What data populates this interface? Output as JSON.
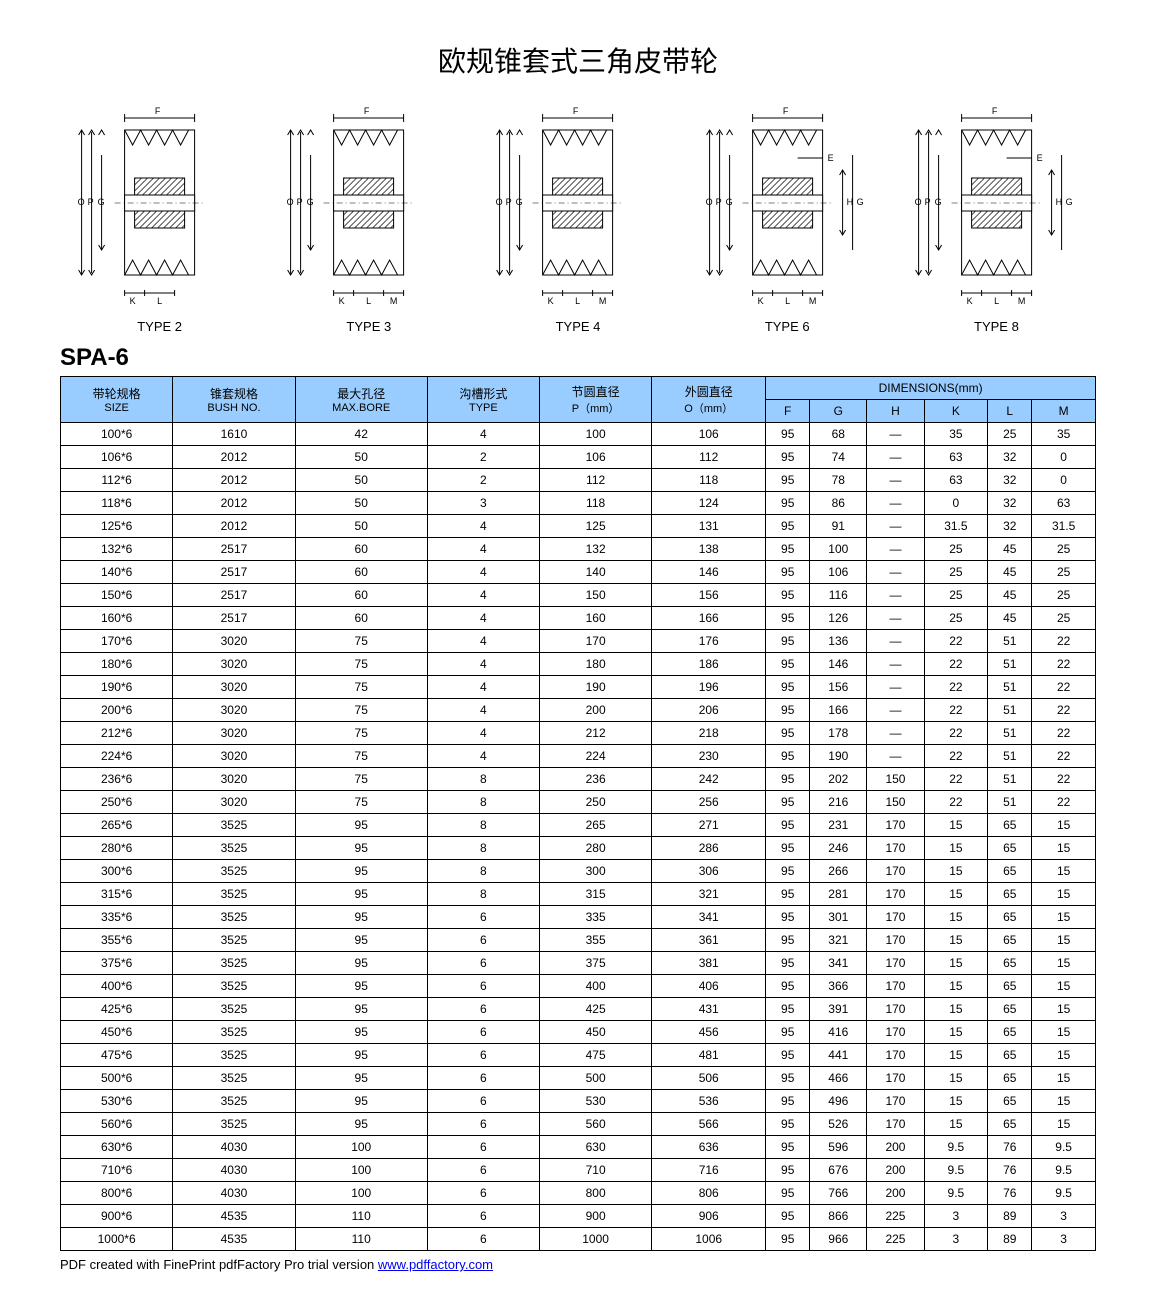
{
  "title": "欧规锥套式三角皮带轮",
  "model": "SPA-6",
  "diagrams": [
    {
      "label": "TYPE 2",
      "dims": [
        "F",
        "O",
        "P",
        "G",
        "K",
        "L"
      ]
    },
    {
      "label": "TYPE 3",
      "dims": [
        "F",
        "O",
        "P",
        "G",
        "K",
        "L",
        "M"
      ]
    },
    {
      "label": "TYPE 4",
      "dims": [
        "F",
        "O",
        "P",
        "G",
        "K",
        "L",
        "M"
      ]
    },
    {
      "label": "TYPE 6",
      "dims": [
        "F",
        "E",
        "O",
        "P",
        "H",
        "G",
        "K",
        "L",
        "M"
      ]
    },
    {
      "label": "TYPE 8",
      "dims": [
        "F",
        "E",
        "O",
        "P",
        "H",
        "G",
        "K",
        "L",
        "M"
      ]
    }
  ],
  "headers": {
    "row1": [
      {
        "cn": "带轮规格",
        "en": "SIZE"
      },
      {
        "cn": "锥套规格",
        "en": "BUSH NO."
      },
      {
        "cn": "最大孔径",
        "en": "MAX.BORE"
      },
      {
        "cn": "沟槽形式",
        "en": "TYPE"
      },
      {
        "cn": "节圆直径",
        "en": "P（mm）"
      },
      {
        "cn": "外圆直径",
        "en": "O（mm）"
      }
    ],
    "dims_title": "DIMENSIONS(mm)",
    "dims_cols": [
      "F",
      "G",
      "H",
      "K",
      "L",
      "M"
    ]
  },
  "colors": {
    "header_bg": "#99ccff",
    "border": "#000000",
    "link": "#0000ee"
  },
  "rows": [
    [
      "100*6",
      "1610",
      "42",
      "4",
      "100",
      "106",
      "95",
      "68",
      "—",
      "35",
      "25",
      "35"
    ],
    [
      "106*6",
      "2012",
      "50",
      "2",
      "106",
      "112",
      "95",
      "74",
      "—",
      "63",
      "32",
      "0"
    ],
    [
      "112*6",
      "2012",
      "50",
      "2",
      "112",
      "118",
      "95",
      "78",
      "—",
      "63",
      "32",
      "0"
    ],
    [
      "118*6",
      "2012",
      "50",
      "3",
      "118",
      "124",
      "95",
      "86",
      "—",
      "0",
      "32",
      "63"
    ],
    [
      "125*6",
      "2012",
      "50",
      "4",
      "125",
      "131",
      "95",
      "91",
      "—",
      "31.5",
      "32",
      "31.5"
    ],
    [
      "132*6",
      "2517",
      "60",
      "4",
      "132",
      "138",
      "95",
      "100",
      "—",
      "25",
      "45",
      "25"
    ],
    [
      "140*6",
      "2517",
      "60",
      "4",
      "140",
      "146",
      "95",
      "106",
      "—",
      "25",
      "45",
      "25"
    ],
    [
      "150*6",
      "2517",
      "60",
      "4",
      "150",
      "156",
      "95",
      "116",
      "—",
      "25",
      "45",
      "25"
    ],
    [
      "160*6",
      "2517",
      "60",
      "4",
      "160",
      "166",
      "95",
      "126",
      "—",
      "25",
      "45",
      "25"
    ],
    [
      "170*6",
      "3020",
      "75",
      "4",
      "170",
      "176",
      "95",
      "136",
      "—",
      "22",
      "51",
      "22"
    ],
    [
      "180*6",
      "3020",
      "75",
      "4",
      "180",
      "186",
      "95",
      "146",
      "—",
      "22",
      "51",
      "22"
    ],
    [
      "190*6",
      "3020",
      "75",
      "4",
      "190",
      "196",
      "95",
      "156",
      "—",
      "22",
      "51",
      "22"
    ],
    [
      "200*6",
      "3020",
      "75",
      "4",
      "200",
      "206",
      "95",
      "166",
      "—",
      "22",
      "51",
      "22"
    ],
    [
      "212*6",
      "3020",
      "75",
      "4",
      "212",
      "218",
      "95",
      "178",
      "—",
      "22",
      "51",
      "22"
    ],
    [
      "224*6",
      "3020",
      "75",
      "4",
      "224",
      "230",
      "95",
      "190",
      "—",
      "22",
      "51",
      "22"
    ],
    [
      "236*6",
      "3020",
      "75",
      "8",
      "236",
      "242",
      "95",
      "202",
      "150",
      "22",
      "51",
      "22"
    ],
    [
      "250*6",
      "3020",
      "75",
      "8",
      "250",
      "256",
      "95",
      "216",
      "150",
      "22",
      "51",
      "22"
    ],
    [
      "265*6",
      "3525",
      "95",
      "8",
      "265",
      "271",
      "95",
      "231",
      "170",
      "15",
      "65",
      "15"
    ],
    [
      "280*6",
      "3525",
      "95",
      "8",
      "280",
      "286",
      "95",
      "246",
      "170",
      "15",
      "65",
      "15"
    ],
    [
      "300*6",
      "3525",
      "95",
      "8",
      "300",
      "306",
      "95",
      "266",
      "170",
      "15",
      "65",
      "15"
    ],
    [
      "315*6",
      "3525",
      "95",
      "8",
      "315",
      "321",
      "95",
      "281",
      "170",
      "15",
      "65",
      "15"
    ],
    [
      "335*6",
      "3525",
      "95",
      "6",
      "335",
      "341",
      "95",
      "301",
      "170",
      "15",
      "65",
      "15"
    ],
    [
      "355*6",
      "3525",
      "95",
      "6",
      "355",
      "361",
      "95",
      "321",
      "170",
      "15",
      "65",
      "15"
    ],
    [
      "375*6",
      "3525",
      "95",
      "6",
      "375",
      "381",
      "95",
      "341",
      "170",
      "15",
      "65",
      "15"
    ],
    [
      "400*6",
      "3525",
      "95",
      "6",
      "400",
      "406",
      "95",
      "366",
      "170",
      "15",
      "65",
      "15"
    ],
    [
      "425*6",
      "3525",
      "95",
      "6",
      "425",
      "431",
      "95",
      "391",
      "170",
      "15",
      "65",
      "15"
    ],
    [
      "450*6",
      "3525",
      "95",
      "6",
      "450",
      "456",
      "95",
      "416",
      "170",
      "15",
      "65",
      "15"
    ],
    [
      "475*6",
      "3525",
      "95",
      "6",
      "475",
      "481",
      "95",
      "441",
      "170",
      "15",
      "65",
      "15"
    ],
    [
      "500*6",
      "3525",
      "95",
      "6",
      "500",
      "506",
      "95",
      "466",
      "170",
      "15",
      "65",
      "15"
    ],
    [
      "530*6",
      "3525",
      "95",
      "6",
      "530",
      "536",
      "95",
      "496",
      "170",
      "15",
      "65",
      "15"
    ],
    [
      "560*6",
      "3525",
      "95",
      "6",
      "560",
      "566",
      "95",
      "526",
      "170",
      "15",
      "65",
      "15"
    ],
    [
      "630*6",
      "4030",
      "100",
      "6",
      "630",
      "636",
      "95",
      "596",
      "200",
      "9.5",
      "76",
      "9.5"
    ],
    [
      "710*6",
      "4030",
      "100",
      "6",
      "710",
      "716",
      "95",
      "676",
      "200",
      "9.5",
      "76",
      "9.5"
    ],
    [
      "800*6",
      "4030",
      "100",
      "6",
      "800",
      "806",
      "95",
      "766",
      "200",
      "9.5",
      "76",
      "9.5"
    ],
    [
      "900*6",
      "4535",
      "110",
      "6",
      "900",
      "906",
      "95",
      "866",
      "225",
      "3",
      "89",
      "3"
    ],
    [
      "1000*6",
      "4535",
      "110",
      "6",
      "1000",
      "1006",
      "95",
      "966",
      "225",
      "3",
      "89",
      "3"
    ]
  ],
  "footer": {
    "prefix": "PDF created with FinePrint pdfFactory Pro trial version ",
    "link_text": "www.pdffactory.com",
    "link_url": "http://www.pdffactory.com"
  }
}
